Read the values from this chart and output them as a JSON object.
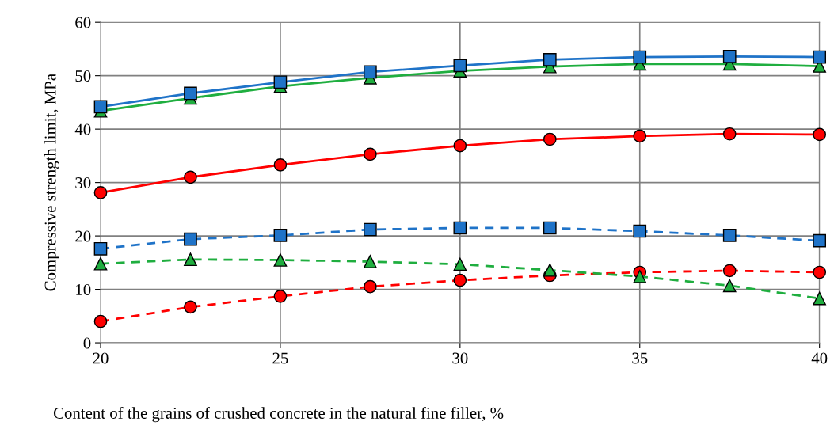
{
  "chart_data": {
    "type": "line",
    "xlabel": "Content of the grains of crushed concrete in the natural fine filler, %",
    "ylabel": "Compressive strength limit, MPa",
    "x": [
      20,
      22.5,
      25,
      27.5,
      30,
      32.5,
      35,
      37.5,
      40
    ],
    "xlim": [
      20,
      40
    ],
    "xticks": [
      20,
      25,
      30,
      35,
      40
    ],
    "ylim": [
      0,
      60
    ],
    "yticks": [
      0,
      10,
      20,
      30,
      40,
      50,
      60
    ],
    "grid": true,
    "series": [
      {
        "color": "#1f73c8",
        "marker": "square",
        "line_style": "solid",
        "values": [
          44.2,
          46.7,
          48.8,
          50.7,
          51.9,
          53.0,
          53.5,
          53.6,
          53.5
        ]
      },
      {
        "color": "#1fae3f",
        "marker": "triangle",
        "line_style": "solid",
        "values": [
          43.4,
          45.8,
          48.0,
          49.6,
          50.9,
          51.7,
          52.2,
          52.2,
          51.8
        ]
      },
      {
        "color": "#ff0000",
        "marker": "circle",
        "line_style": "solid",
        "values": [
          28.1,
          31.0,
          33.3,
          35.3,
          36.9,
          38.1,
          38.7,
          39.1,
          39.0
        ]
      },
      {
        "color": "#1f73c8",
        "marker": "square",
        "line_style": "dashed",
        "values": [
          17.6,
          19.4,
          20.1,
          21.2,
          21.5,
          21.5,
          20.9,
          20.1,
          19.1
        ]
      },
      {
        "color": "#1fae3f",
        "marker": "triangle",
        "line_style": "dashed",
        "values": [
          14.8,
          15.6,
          15.5,
          15.2,
          14.7,
          13.6,
          12.4,
          10.7,
          8.3
        ]
      },
      {
        "color": "#ff0000",
        "marker": "circle",
        "line_style": "dashed",
        "values": [
          4.0,
          6.7,
          8.7,
          10.5,
          11.7,
          12.6,
          13.2,
          13.5,
          13.2
        ]
      }
    ]
  }
}
